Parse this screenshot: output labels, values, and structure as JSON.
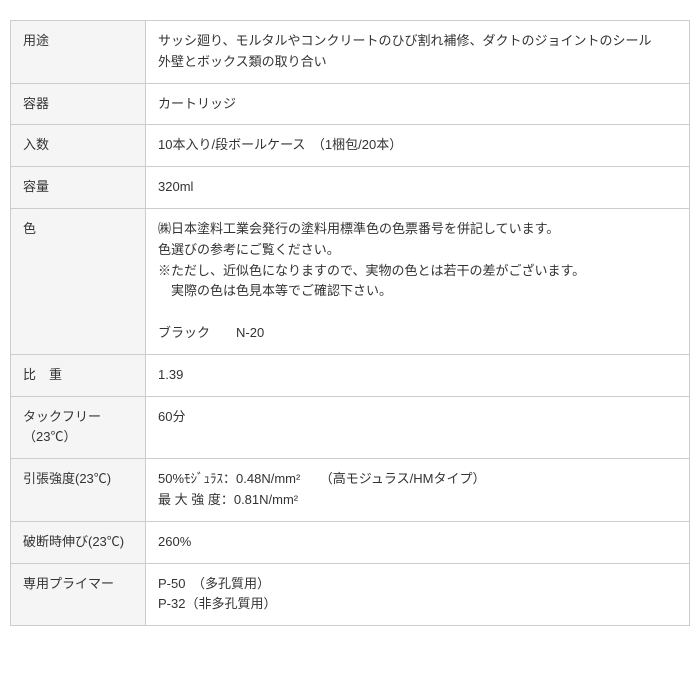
{
  "table": {
    "header_bg": "#f5f5f5",
    "border_color": "#cccccc",
    "text_color": "#333333",
    "font_size": 13,
    "rows": [
      {
        "label": "用途",
        "lines": [
          "サッシ廻り、モルタルやコンクリートのひび割れ補修、ダクトのジョイントのシール",
          "外壁とボックス類の取り合い"
        ]
      },
      {
        "label": "容器",
        "lines": [
          "カートリッジ"
        ]
      },
      {
        "label": "入数",
        "lines": [
          "10本入り/段ボールケース　（1梱包/20本）"
        ]
      },
      {
        "label": "容量",
        "lines": [
          "320ml"
        ]
      },
      {
        "label": "色",
        "lines": [
          "㈱日本塗料工業会発行の塗料用標準色の色票番号を併記しています。",
          "色選びの参考にご覧ください。",
          "※ただし、近似色になりますので、実物の色とは若干の差がございます。",
          "　実際の色は色見本等でご確認下さい。",
          " ",
          "ブラック　　N-20"
        ]
      },
      {
        "label": "比　重",
        "lines": [
          "1.39"
        ]
      },
      {
        "label": "タックフリー（23℃）",
        "lines": [
          "60分"
        ]
      },
      {
        "label": "引張強度(23℃)",
        "lines": [
          "50%ﾓｼﾞｭﾗｽ：0.48N/mm²　　（高モジュラス/HMタイプ）",
          "最 大 強 度：0.81N/mm²"
        ]
      },
      {
        "label": "破断時伸び(23℃)",
        "lines": [
          "260%"
        ]
      },
      {
        "label": "専用プライマー",
        "lines": [
          "P-50　（多孔質用）",
          "P-32（非多孔質用）"
        ]
      }
    ]
  }
}
